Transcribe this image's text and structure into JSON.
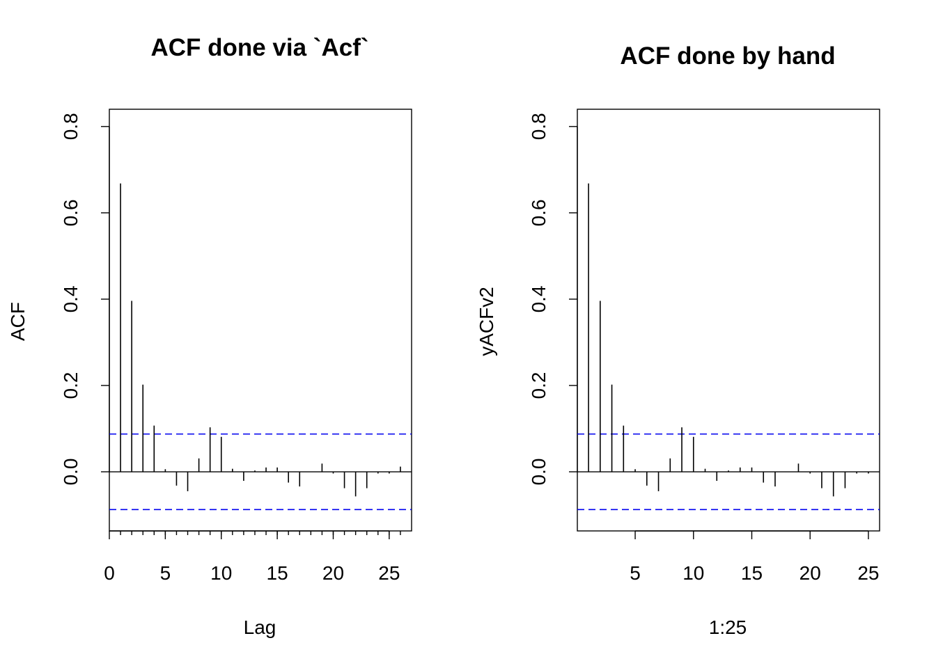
{
  "chart_data": [
    {
      "type": "bar",
      "title": "ACF done via `Acf`",
      "xlabel": "Lag",
      "ylabel": "ACF",
      "xlim": [
        0,
        27
      ],
      "ylim": [
        -0.137,
        0.84
      ],
      "xticks": [
        0,
        5,
        10,
        15,
        20,
        25
      ],
      "xtick_labels": [
        "0",
        "5",
        "10",
        "15",
        "20",
        "25"
      ],
      "minor_xticks": [
        1,
        2,
        3,
        4,
        5,
        6,
        7,
        8,
        9,
        10,
        11,
        12,
        13,
        14,
        15,
        16,
        17,
        18,
        19,
        20,
        21,
        22,
        23,
        24,
        25,
        26
      ],
      "yticks": [
        0.0,
        0.2,
        0.4,
        0.6,
        0.8
      ],
      "ytick_labels": [
        "0.0",
        "0.2",
        "0.4",
        "0.6",
        "0.8"
      ],
      "baseline": 0,
      "confidence_band": 0.0875,
      "band_color": "#0000ee",
      "bar_color": "#000000",
      "x": [
        1,
        2,
        3,
        4,
        5,
        6,
        7,
        8,
        9,
        10,
        11,
        12,
        13,
        14,
        15,
        16,
        17,
        18,
        19,
        20,
        21,
        22,
        23,
        24,
        25,
        26
      ],
      "values": [
        0.668,
        0.396,
        0.202,
        0.107,
        0.006,
        -0.032,
        -0.045,
        0.031,
        0.103,
        0.081,
        0.007,
        -0.021,
        0.003,
        0.01,
        0.01,
        -0.025,
        -0.034,
        0.0,
        0.019,
        -0.004,
        -0.038,
        -0.057,
        -0.038,
        -0.004,
        -0.004,
        0.012
      ],
      "grid": false,
      "legend": "none"
    },
    {
      "type": "bar",
      "title": "ACF done by hand",
      "xlabel": "1:25",
      "ylabel": "yACFv2",
      "xlim": [
        0.04,
        25.96
      ],
      "ylim": [
        -0.137,
        0.84
      ],
      "xticks": [
        5,
        10,
        15,
        20,
        25
      ],
      "xtick_labels": [
        "5",
        "10",
        "15",
        "20",
        "25"
      ],
      "minor_xticks": [],
      "yticks": [
        0.0,
        0.2,
        0.4,
        0.6,
        0.8
      ],
      "ytick_labels": [
        "0.0",
        "0.2",
        "0.4",
        "0.6",
        "0.8"
      ],
      "baseline": 0,
      "confidence_band": 0.0875,
      "band_color": "#0000ee",
      "bar_color": "#000000",
      "x": [
        1,
        2,
        3,
        4,
        5,
        6,
        7,
        8,
        9,
        10,
        11,
        12,
        13,
        14,
        15,
        16,
        17,
        18,
        19,
        20,
        21,
        22,
        23,
        24,
        25
      ],
      "values": [
        0.668,
        0.396,
        0.202,
        0.107,
        0.006,
        -0.032,
        -0.045,
        0.031,
        0.103,
        0.081,
        0.007,
        -0.021,
        0.003,
        0.01,
        0.01,
        -0.025,
        -0.034,
        0.0,
        0.019,
        -0.004,
        -0.038,
        -0.057,
        -0.038,
        -0.004,
        -0.004
      ],
      "grid": false,
      "legend": "none"
    }
  ]
}
